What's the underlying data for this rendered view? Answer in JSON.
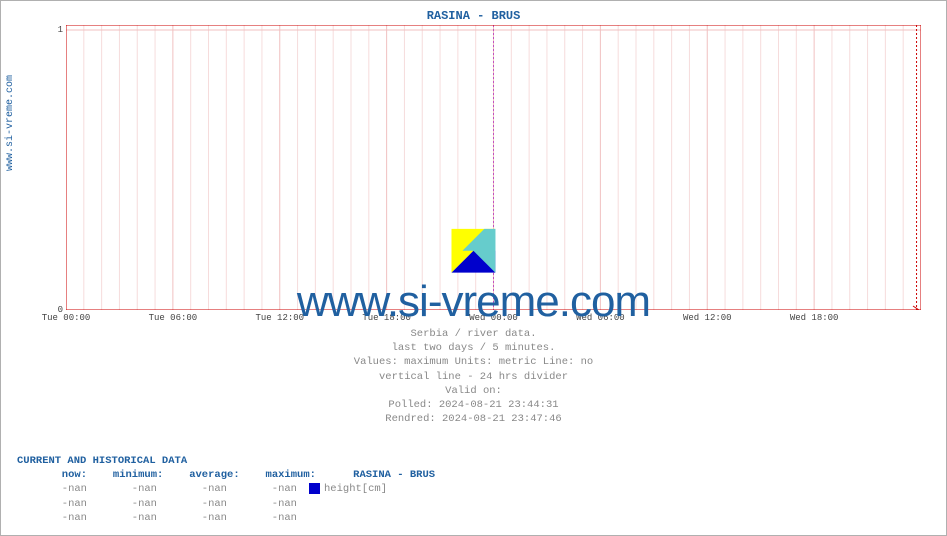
{
  "title": "RASINA -  BRUS",
  "title_color": "#2060a0",
  "ylabel_text": "www.si-vreme.com",
  "ylabel_color": "#2060a0",
  "chart": {
    "type": "line",
    "xlim_ticks": [
      "Tue 00:00",
      "Tue 06:00",
      "Tue 12:00",
      "Tue 18:00",
      "Wed 00:00",
      "Wed 06:00",
      "Wed 12:00",
      "Wed 18:00"
    ],
    "x_total_hours": 48,
    "ylim": [
      0,
      1
    ],
    "ytick_values": [
      0,
      1
    ],
    "major_grid_x_hours": [
      0,
      6,
      12,
      18,
      24,
      30,
      36,
      42,
      48
    ],
    "minor_grid_x_hours": [
      1,
      2,
      3,
      4,
      5,
      7,
      8,
      9,
      10,
      11,
      13,
      14,
      15,
      16,
      17,
      19,
      20,
      21,
      22,
      23,
      25,
      26,
      27,
      28,
      29,
      31,
      32,
      33,
      34,
      35,
      37,
      38,
      39,
      40,
      41,
      43,
      44,
      45,
      46,
      47
    ],
    "divider_x_hour": 24,
    "now_marker_hour": 47.75,
    "now_marker_color": "#cc0000",
    "divider_color": "#c050c0",
    "axis_color": "#cc0000",
    "major_grid_color": "#f0c0c0",
    "minor_grid_color": "#f6dcdc",
    "tick_label_color": "#444444",
    "background_color": "#ffffff",
    "tick_fontsize": 9
  },
  "watermark": {
    "text": "www.si-vreme.com",
    "color": "#2060a0",
    "logo_colors": {
      "tl": "#ffff00",
      "tr": "#66cccc",
      "br": "#0000cc"
    }
  },
  "meta": {
    "lines": [
      "Serbia / river data.",
      "last two days / 5 minutes.",
      "Values: maximum  Units: metric  Line: no",
      "vertical line - 24 hrs  divider",
      "Valid on:",
      "Polled: 2024-08-21 23:44:31",
      "Rendred: 2024-08-21 23:47:46"
    ],
    "color": "#888888"
  },
  "table": {
    "header": "CURRENT AND HISTORICAL DATA",
    "header_color": "#2060a0",
    "columns": [
      "now",
      "minimum",
      "average",
      "maximum"
    ],
    "column_label_color": "#2060a0",
    "value_color": "#888888",
    "rows": [
      {
        "now": "-nan",
        "min": "-nan",
        "avg": "-nan",
        "max": "-nan",
        "swatch": "#0000cc",
        "series": "height[cm]"
      },
      {
        "now": "-nan",
        "min": "-nan",
        "avg": "-nan",
        "max": "-nan",
        "swatch": null,
        "series": ""
      },
      {
        "now": "-nan",
        "min": "-nan",
        "avg": "-nan",
        "max": "-nan",
        "swatch": null,
        "series": ""
      }
    ]
  }
}
